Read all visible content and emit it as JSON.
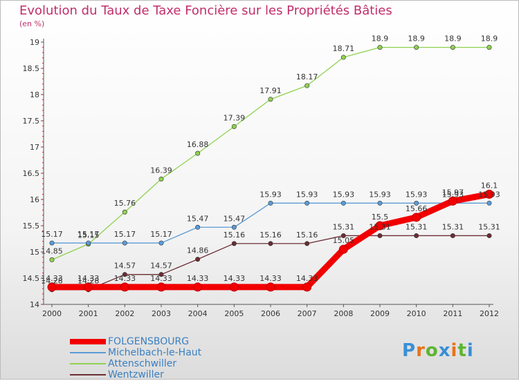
{
  "logo": {
    "text": "Proxiti",
    "colors": [
      "#3a8fd6",
      "#e8731a",
      "#5db532",
      "#3a8fd6",
      "#e8731a",
      "#5db532",
      "#3a8fd6"
    ]
  },
  "chart_data": {
    "type": "line",
    "title": "Evolution du Taux de Taxe Foncière sur les Propriétés Bâties",
    "ylabel": "(en %)",
    "xlabel": "",
    "x": [
      "2000",
      "2001",
      "2002",
      "2003",
      "2004",
      "2005",
      "2006",
      "2007",
      "2008",
      "2009",
      "2010",
      "2011",
      "2012"
    ],
    "ylim": [
      14,
      19
    ],
    "yticks": [
      "14",
      "14.5",
      "15",
      "15.5",
      "16",
      "16.5",
      "17",
      "17.5",
      "18",
      "18.5",
      "19"
    ],
    "grid": false,
    "legend_position": "bottom-left",
    "series": [
      {
        "name": "FOLGENSBOURG",
        "color": "#f20000",
        "values": [
          14.33,
          14.33,
          14.33,
          14.33,
          14.33,
          14.33,
          14.33,
          14.33,
          15.05,
          15.5,
          15.66,
          15.97,
          16.1
        ],
        "labels": [
          "14.33",
          "14.33",
          "14.33",
          "14.33",
          "14.33",
          "14.33",
          "14.33",
          "14.33",
          "15.05",
          "15.5",
          "15.66",
          "15.97",
          "16.1"
        ]
      },
      {
        "name": "Michelbach-le-Haut",
        "color": "#5b9bd5",
        "values": [
          15.17,
          15.17,
          15.17,
          15.17,
          15.47,
          15.47,
          15.93,
          15.93,
          15.93,
          15.93,
          15.93,
          15.93,
          15.93
        ],
        "labels": [
          "15.17",
          "15.17",
          "15.17",
          "15.17",
          "15.47",
          "15.47",
          "15.93",
          "15.93",
          "15.93",
          "15.93",
          "15.93",
          "15.93",
          "15.93"
        ]
      },
      {
        "name": "Attenschwiller",
        "color": "#8fd14f",
        "values": [
          14.85,
          15.15,
          15.76,
          16.39,
          16.88,
          17.39,
          17.91,
          18.17,
          18.71,
          18.9,
          18.9,
          18.9,
          18.9
        ],
        "labels": [
          "14.85",
          "15.15",
          "15.76",
          "16.39",
          "16.88",
          "17.39",
          "17.91",
          "18.17",
          "18.71",
          "18.9",
          "18.9",
          "18.9",
          "18.9"
        ]
      },
      {
        "name": "Wentzwiller",
        "color": "#6b2d34",
        "values": [
          14.28,
          14.28,
          14.57,
          14.57,
          14.86,
          15.16,
          15.16,
          15.16,
          15.31,
          15.31,
          15.31,
          15.31,
          15.31
        ],
        "labels": [
          "14.28",
          "14.28",
          "14.57",
          "14.57",
          "14.86",
          "15.16",
          "15.16",
          "15.16",
          "15.31",
          "15.31",
          "15.31",
          "15.31",
          "15.31"
        ]
      }
    ]
  }
}
